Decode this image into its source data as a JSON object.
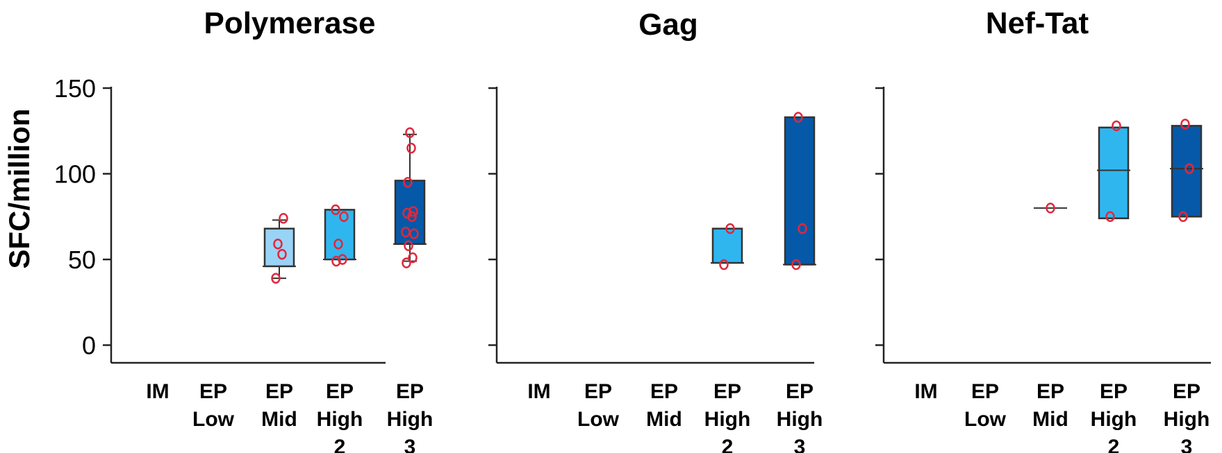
{
  "colors": {
    "EP Mid": "#99d3f6",
    "EP High 2": "#30b6ef",
    "EP High 3": "#0559a8",
    "point": "#e0283c",
    "axis": "#222222"
  },
  "chart_data": [
    {
      "type": "box",
      "title": "Polymerase",
      "ylabel": "SFC/million",
      "ylim": [
        -10,
        150
      ],
      "yticks": [
        0,
        50,
        100,
        150
      ],
      "categories": [
        {
          "lines": [
            "IM"
          ]
        },
        {
          "lines": [
            "EP",
            "Low"
          ]
        },
        {
          "lines": [
            "EP",
            "Mid"
          ]
        },
        {
          "lines": [
            "EP",
            "High",
            "2"
          ]
        },
        {
          "lines": [
            "EP",
            "High",
            "3"
          ]
        }
      ],
      "groups": [
        {
          "category": "IM",
          "points": []
        },
        {
          "category": "EP Low",
          "points": []
        },
        {
          "category": "EP Mid",
          "q1": 46,
          "median": 46,
          "q3": 68,
          "whisker_low": 39,
          "whisker_high": 73,
          "points": [
            39,
            53,
            59,
            74
          ]
        },
        {
          "category": "EP High 2",
          "q1": 50,
          "median": 50,
          "q3": 79,
          "whisker_low": 50,
          "whisker_high": 79,
          "points": [
            49,
            50,
            59,
            75,
            79
          ]
        },
        {
          "category": "EP High 3",
          "q1": 59,
          "median": 59,
          "q3": 96,
          "whisker_low": 49,
          "whisker_high": 123,
          "points": [
            48,
            51,
            58,
            65,
            66,
            75,
            77,
            78,
            95,
            115,
            124
          ]
        }
      ]
    },
    {
      "type": "box",
      "title": "Gag",
      "ylim": [
        -10,
        150
      ],
      "yticks": [
        0,
        50,
        100,
        150
      ],
      "categories": [
        {
          "lines": [
            "IM"
          ]
        },
        {
          "lines": [
            "EP",
            "Low"
          ]
        },
        {
          "lines": [
            "EP",
            "Mid"
          ]
        },
        {
          "lines": [
            "EP",
            "High",
            "2"
          ]
        },
        {
          "lines": [
            "EP",
            "High",
            "3"
          ]
        }
      ],
      "groups": [
        {
          "category": "IM",
          "points": []
        },
        {
          "category": "EP Low",
          "points": []
        },
        {
          "category": "EP Mid",
          "points": []
        },
        {
          "category": "EP High 2",
          "q1": 48,
          "median": 48,
          "q3": 68,
          "points": [
            47,
            68
          ]
        },
        {
          "category": "EP High 3",
          "q1": 47,
          "median": 47,
          "q3": 133,
          "points": [
            47,
            68,
            133
          ]
        }
      ]
    },
    {
      "type": "box",
      "title": "Nef-Tat",
      "ylim": [
        -10,
        150
      ],
      "yticks": [
        0,
        50,
        100,
        150
      ],
      "categories": [
        {
          "lines": [
            "IM"
          ]
        },
        {
          "lines": [
            "EP",
            "Low"
          ]
        },
        {
          "lines": [
            "EP",
            "Mid"
          ]
        },
        {
          "lines": [
            "EP",
            "High",
            "2"
          ]
        },
        {
          "lines": [
            "EP",
            "High",
            "3"
          ]
        }
      ],
      "groups": [
        {
          "category": "IM",
          "points": []
        },
        {
          "category": "EP Low",
          "points": []
        },
        {
          "category": "EP Mid",
          "median": 80,
          "points": [
            80
          ]
        },
        {
          "category": "EP High 2",
          "q1": 74,
          "median": 102,
          "q3": 127,
          "points": [
            75,
            128
          ]
        },
        {
          "category": "EP High 3",
          "q1": 75,
          "median": 103,
          "q3": 128,
          "points": [
            75,
            103,
            129
          ]
        }
      ]
    }
  ]
}
